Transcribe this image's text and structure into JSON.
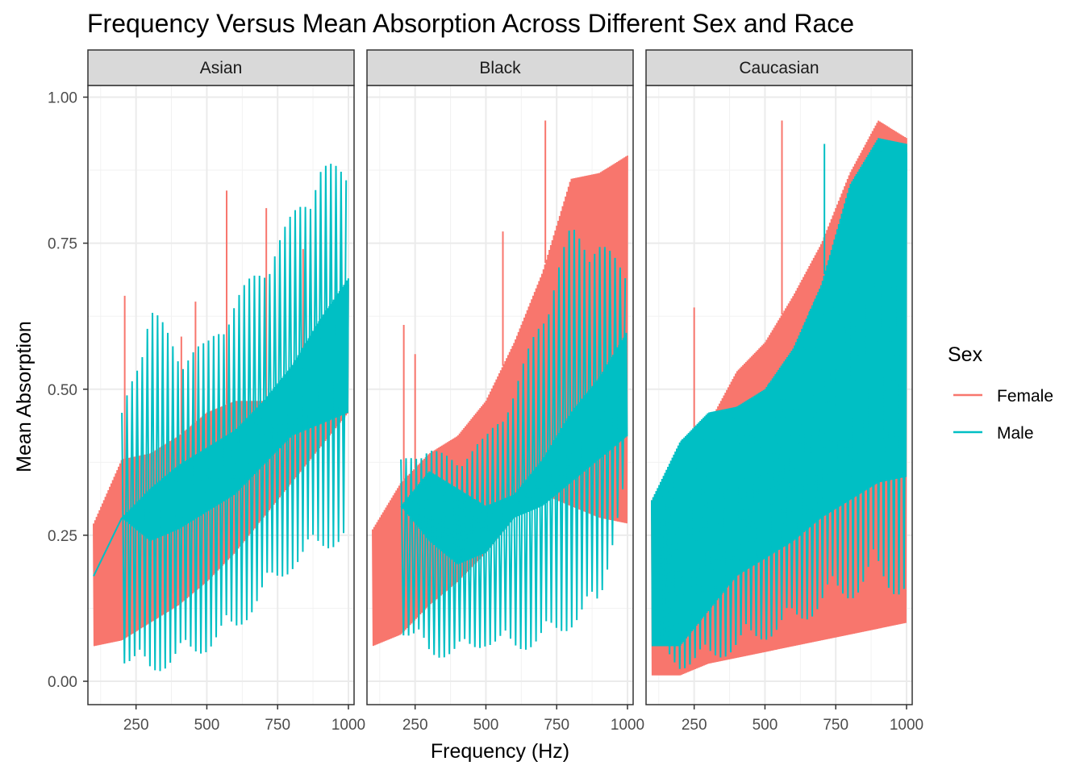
{
  "chart_data": {
    "type": "line",
    "title": "Frequency Versus Mean Absorption Across Different Sex and Race",
    "xlabel": "Frequency (Hz)",
    "ylabel": "Mean Absorption",
    "xlim": [
      80,
      1020
    ],
    "ylim": [
      -0.04,
      1.02
    ],
    "x_ticks": [
      250,
      500,
      750,
      1000
    ],
    "x_tick_labels": [
      "250",
      "500",
      "750",
      "1000"
    ],
    "y_ticks": [
      0.0,
      0.25,
      0.5,
      0.75,
      1.0
    ],
    "y_tick_labels": [
      "0.00",
      "0.25",
      "0.50",
      "0.75",
      "1.00"
    ],
    "grid": true,
    "legend": {
      "title": "Sex",
      "position": "right",
      "entries": [
        {
          "label": "Female",
          "color": "#F8766D"
        },
        {
          "label": "Male",
          "color": "#00BFC4"
        }
      ]
    },
    "facets": [
      {
        "label": "Asian",
        "series": [
          {
            "name": "Female",
            "color": "#F8766D",
            "x_range": [
              100,
              1000
            ],
            "upper": [
              [
                100,
                0.27
              ],
              [
                200,
                0.38
              ],
              [
                300,
                0.39
              ],
              [
                400,
                0.42
              ],
              [
                500,
                0.46
              ],
              [
                600,
                0.48
              ],
              [
                700,
                0.48
              ],
              [
                800,
                0.52
              ],
              [
                900,
                0.58
              ],
              [
                1000,
                0.68
              ]
            ],
            "lower": [
              [
                100,
                0.06
              ],
              [
                200,
                0.07
              ],
              [
                300,
                0.1
              ],
              [
                400,
                0.13
              ],
              [
                500,
                0.17
              ],
              [
                600,
                0.22
              ],
              [
                700,
                0.28
              ],
              [
                800,
                0.34
              ],
              [
                900,
                0.4
              ],
              [
                1000,
                0.46
              ]
            ],
            "spikes": [
              [
                210,
                0.66
              ],
              [
                410,
                0.59
              ],
              [
                460,
                0.65
              ],
              [
                570,
                0.84
              ],
              [
                710,
                0.81
              ],
              [
                840,
                0.74
              ]
            ]
          },
          {
            "name": "Male",
            "color": "#00BFC4",
            "x_range": [
              100,
              1000
            ],
            "upper": [
              [
                100,
                0.18
              ],
              [
                200,
                0.28
              ],
              [
                300,
                0.33
              ],
              [
                400,
                0.37
              ],
              [
                500,
                0.4
              ],
              [
                600,
                0.43
              ],
              [
                700,
                0.48
              ],
              [
                800,
                0.54
              ],
              [
                900,
                0.62
              ],
              [
                1000,
                0.69
              ]
            ],
            "lower": [
              [
                100,
                0.18
              ],
              [
                200,
                0.28
              ],
              [
                300,
                0.24
              ],
              [
                400,
                0.26
              ],
              [
                500,
                0.29
              ],
              [
                600,
                0.32
              ],
              [
                700,
                0.37
              ],
              [
                800,
                0.42
              ],
              [
                900,
                0.44
              ],
              [
                1000,
                0.46
              ]
            ],
            "osc_max": [
              [
                200,
                0.46
              ],
              [
                300,
                0.65
              ],
              [
                400,
                0.57
              ],
              [
                500,
                0.58
              ],
              [
                600,
                0.66
              ],
              [
                700,
                0.72
              ],
              [
                800,
                0.8
              ],
              [
                900,
                0.89
              ],
              [
                1000,
                0.88
              ]
            ],
            "osc_min": [
              [
                200,
                0.03
              ],
              [
                300,
                0.01
              ],
              [
                400,
                0.03
              ],
              [
                500,
                0.05
              ],
              [
                600,
                0.08
              ],
              [
                700,
                0.14
              ],
              [
                800,
                0.19
              ],
              [
                900,
                0.22
              ],
              [
                1000,
                0.24
              ]
            ]
          }
        ]
      },
      {
        "label": "Black",
        "series": [
          {
            "name": "Female",
            "color": "#F8766D",
            "x_range": [
              100,
              1000
            ],
            "upper": [
              [
                100,
                0.26
              ],
              [
                200,
                0.34
              ],
              [
                300,
                0.39
              ],
              [
                400,
                0.42
              ],
              [
                500,
                0.48
              ],
              [
                600,
                0.58
              ],
              [
                700,
                0.7
              ],
              [
                800,
                0.86
              ],
              [
                900,
                0.87
              ],
              [
                1000,
                0.9
              ]
            ],
            "lower": [
              [
                100,
                0.06
              ],
              [
                200,
                0.08
              ],
              [
                300,
                0.13
              ],
              [
                400,
                0.17
              ],
              [
                500,
                0.22
              ],
              [
                600,
                0.28
              ],
              [
                700,
                0.32
              ],
              [
                800,
                0.3
              ],
              [
                900,
                0.28
              ],
              [
                1000,
                0.27
              ]
            ],
            "spikes": [
              [
                210,
                0.61
              ],
              [
                250,
                0.56
              ],
              [
                560,
                0.77
              ],
              [
                710,
                0.96
              ]
            ]
          },
          {
            "name": "Male",
            "color": "#00BFC4",
            "x_range": [
              200,
              1000
            ],
            "upper": [
              [
                200,
                0.3
              ],
              [
                300,
                0.36
              ],
              [
                400,
                0.33
              ],
              [
                500,
                0.3
              ],
              [
                600,
                0.32
              ],
              [
                700,
                0.38
              ],
              [
                800,
                0.46
              ],
              [
                900,
                0.52
              ],
              [
                1000,
                0.6
              ]
            ],
            "lower": [
              [
                200,
                0.3
              ],
              [
                300,
                0.24
              ],
              [
                400,
                0.2
              ],
              [
                500,
                0.22
              ],
              [
                600,
                0.28
              ],
              [
                700,
                0.3
              ],
              [
                800,
                0.34
              ],
              [
                900,
                0.38
              ],
              [
                1000,
                0.42
              ]
            ],
            "osc_max": [
              [
                200,
                0.38
              ],
              [
                300,
                0.4
              ],
              [
                400,
                0.38
              ],
              [
                500,
                0.42
              ],
              [
                600,
                0.5
              ],
              [
                700,
                0.64
              ],
              [
                800,
                0.78
              ],
              [
                900,
                0.76
              ],
              [
                1000,
                0.7
              ]
            ],
            "osc_min": [
              [
                200,
                0.08
              ],
              [
                300,
                0.04
              ],
              [
                400,
                0.04
              ],
              [
                500,
                0.06
              ],
              [
                600,
                0.05
              ],
              [
                700,
                0.06
              ],
              [
                800,
                0.09
              ],
              [
                900,
                0.12
              ],
              [
                1000,
                0.36
              ]
            ]
          }
        ]
      },
      {
        "label": "Caucasian",
        "series": [
          {
            "name": "Female",
            "color": "#F8766D",
            "x_range": [
              100,
              1000
            ],
            "upper": [
              [
                100,
                0.31
              ],
              [
                200,
                0.38
              ],
              [
                300,
                0.44
              ],
              [
                400,
                0.53
              ],
              [
                500,
                0.58
              ],
              [
                600,
                0.66
              ],
              [
                700,
                0.75
              ],
              [
                800,
                0.87
              ],
              [
                900,
                0.96
              ],
              [
                1000,
                0.93
              ]
            ],
            "lower": [
              [
                100,
                0.01
              ],
              [
                200,
                0.01
              ],
              [
                300,
                0.03
              ],
              [
                400,
                0.04
              ],
              [
                500,
                0.05
              ],
              [
                600,
                0.06
              ],
              [
                700,
                0.07
              ],
              [
                800,
                0.08
              ],
              [
                900,
                0.09
              ],
              [
                1000,
                0.1
              ]
            ],
            "spikes": [
              [
                250,
                0.64
              ],
              [
                560,
                0.96
              ]
            ]
          },
          {
            "name": "Male",
            "color": "#00BFC4",
            "x_range": [
              100,
              1000
            ],
            "upper": [
              [
                100,
                0.31
              ],
              [
                200,
                0.41
              ],
              [
                300,
                0.46
              ],
              [
                400,
                0.47
              ],
              [
                500,
                0.5
              ],
              [
                600,
                0.57
              ],
              [
                700,
                0.68
              ],
              [
                800,
                0.85
              ],
              [
                900,
                0.93
              ],
              [
                1000,
                0.92
              ]
            ],
            "lower": [
              [
                100,
                0.06
              ],
              [
                200,
                0.06
              ],
              [
                300,
                0.12
              ],
              [
                400,
                0.18
              ],
              [
                500,
                0.21
              ],
              [
                600,
                0.24
              ],
              [
                700,
                0.28
              ],
              [
                800,
                0.31
              ],
              [
                900,
                0.34
              ],
              [
                1000,
                0.35
              ]
            ],
            "osc_min": [
              [
                100,
                0.06
              ],
              [
                200,
                0.02
              ],
              [
                300,
                0.03
              ],
              [
                400,
                0.05
              ],
              [
                500,
                0.07
              ],
              [
                600,
                0.09
              ],
              [
                700,
                0.12
              ],
              [
                800,
                0.14
              ],
              [
                900,
                0.16
              ],
              [
                1000,
                0.14
              ]
            ],
            "spikes": [
              [
                710,
                0.92
              ]
            ]
          }
        ]
      }
    ]
  }
}
